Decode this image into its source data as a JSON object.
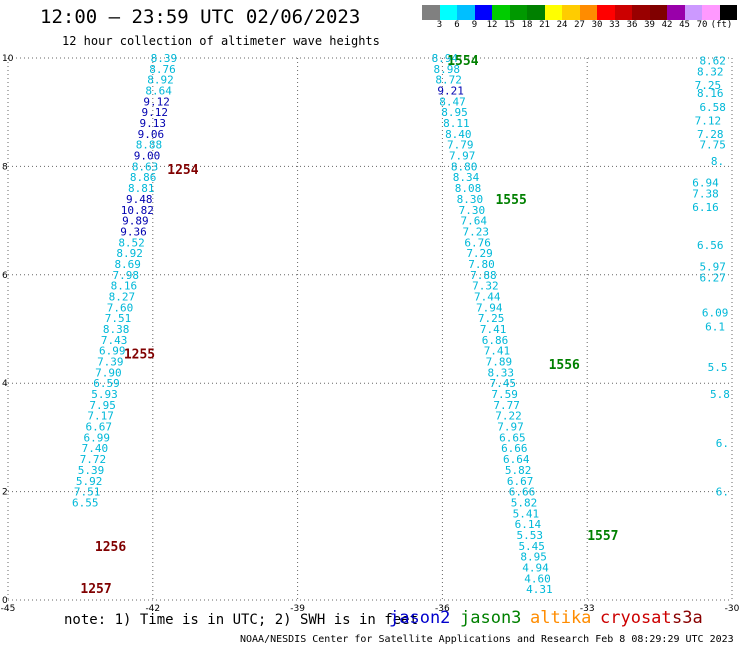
{
  "header": {
    "title": "12:00 — 23:59 UTC 02/06/2023",
    "subtitle": "12 hour collection of altimeter wave heights"
  },
  "colorbar": {
    "colors": [
      "#808080",
      "#00ffff",
      "#00bfff",
      "#0000ff",
      "#00cc00",
      "#009900",
      "#008000",
      "#ffff00",
      "#ffcc00",
      "#ff8c00",
      "#ff0000",
      "#cc0000",
      "#990000",
      "#800000",
      "#9900aa",
      "#cc99ff",
      "#ff99ff",
      "#000000"
    ],
    "labels": [
      "3",
      "6",
      "9",
      "12",
      "15",
      "18",
      "21",
      "24",
      "27",
      "30",
      "33",
      "36",
      "39",
      "42",
      "45",
      "70"
    ],
    "unit": "(ft)"
  },
  "note": "note: 1) Time is in UTC; 2) SWH is in feet",
  "satellites": [
    {
      "name": "jason2",
      "color": "#0000cc"
    },
    {
      "name": "jason3",
      "color": "#008000"
    },
    {
      "name": "altika",
      "color": "#ff8c00"
    },
    {
      "name": "cryosat",
      "color": "#cc0000"
    },
    {
      "name": "s3a",
      "color": "#880000"
    }
  ],
  "footer": "NOAA/NESDIS Center for Satellite Applications and Research   Feb  8 08:29:29 UTC 2023",
  "chart_data": {
    "type": "scatter",
    "title": "12:00 — 23:59 UTC 02/06/2023",
    "subtitle": "12 hour collection of altimeter wave heights",
    "xlim": [
      -45,
      -30
    ],
    "ylim": [
      0,
      10
    ],
    "x_ticks": [
      "-45",
      "-42",
      "-39",
      "-36",
      "-33",
      "-30"
    ],
    "y_ticks": [
      "0",
      "2",
      "4",
      "6",
      "8",
      "10"
    ],
    "grid": true,
    "series": [
      {
        "color_map": {
          "cyan": "#00b8d8",
          "blue": "#1040e0",
          "navy": "#0000b0"
        },
        "points": [
          {
            "x": -41.77,
            "y": 10.0,
            "v": "8.39",
            "c": "cyan"
          },
          {
            "x": -41.8,
            "y": 9.8,
            "v": "8.76",
            "c": "cyan"
          },
          {
            "x": -41.84,
            "y": 9.6,
            "v": "8.92",
            "c": "cyan"
          },
          {
            "x": -41.88,
            "y": 9.4,
            "v": "8.64",
            "c": "cyan"
          },
          {
            "x": -41.92,
            "y": 9.2,
            "v": "9.12",
            "c": "navy"
          },
          {
            "x": -41.96,
            "y": 9.0,
            "v": "9.12",
            "c": "navy"
          },
          {
            "x": -42.0,
            "y": 8.8,
            "v": "9.13",
            "c": "navy"
          },
          {
            "x": -42.04,
            "y": 8.6,
            "v": "9.06",
            "c": "navy"
          },
          {
            "x": -42.08,
            "y": 8.4,
            "v": "8.88",
            "c": "cyan"
          },
          {
            "x": -42.12,
            "y": 8.2,
            "v": "9.00",
            "c": "navy"
          },
          {
            "x": -42.16,
            "y": 8.0,
            "v": "8.63",
            "c": "cyan"
          },
          {
            "x": -42.2,
            "y": 7.8,
            "v": "8.86",
            "c": "cyan"
          },
          {
            "x": -42.24,
            "y": 7.6,
            "v": "8.81",
            "c": "cyan"
          },
          {
            "x": -42.28,
            "y": 7.4,
            "v": "9.48",
            "c": "navy"
          },
          {
            "x": -42.32,
            "y": 7.2,
            "v": "10.82",
            "c": "navy"
          },
          {
            "x": -42.36,
            "y": 7.0,
            "v": "9.89",
            "c": "navy"
          },
          {
            "x": -42.4,
            "y": 6.8,
            "v": "9.36",
            "c": "navy"
          },
          {
            "x": -42.44,
            "y": 6.6,
            "v": "8.52",
            "c": "cyan"
          },
          {
            "x": -42.48,
            "y": 6.4,
            "v": "8.92",
            "c": "cyan"
          },
          {
            "x": -42.52,
            "y": 6.2,
            "v": "8.69",
            "c": "cyan"
          },
          {
            "x": -42.56,
            "y": 6.0,
            "v": "7.98",
            "c": "cyan"
          },
          {
            "x": -42.6,
            "y": 5.8,
            "v": "8.16",
            "c": "cyan"
          },
          {
            "x": -42.64,
            "y": 5.6,
            "v": "8.27",
            "c": "cyan"
          },
          {
            "x": -42.68,
            "y": 5.4,
            "v": "7.60",
            "c": "cyan"
          },
          {
            "x": -42.72,
            "y": 5.2,
            "v": "7.51",
            "c": "cyan"
          },
          {
            "x": -42.76,
            "y": 5.0,
            "v": "8.38",
            "c": "cyan"
          },
          {
            "x": -42.8,
            "y": 4.8,
            "v": "7.43",
            "c": "cyan"
          },
          {
            "x": -42.84,
            "y": 4.6,
            "v": "6.99",
            "c": "cyan"
          },
          {
            "x": -42.88,
            "y": 4.4,
            "v": "7.39",
            "c": "cyan"
          },
          {
            "x": -42.92,
            "y": 4.2,
            "v": "7.90",
            "c": "cyan"
          },
          {
            "x": -42.96,
            "y": 4.0,
            "v": "6.59",
            "c": "cyan"
          },
          {
            "x": -43.0,
            "y": 3.8,
            "v": "5.93",
            "c": "cyan"
          },
          {
            "x": -43.04,
            "y": 3.6,
            "v": "7.95",
            "c": "cyan"
          },
          {
            "x": -43.08,
            "y": 3.4,
            "v": "7.17",
            "c": "cyan"
          },
          {
            "x": -43.12,
            "y": 3.2,
            "v": "6.67",
            "c": "cyan"
          },
          {
            "x": -43.16,
            "y": 3.0,
            "v": "6.99",
            "c": "cyan"
          },
          {
            "x": -43.2,
            "y": 2.8,
            "v": "7.40",
            "c": "cyan"
          },
          {
            "x": -43.24,
            "y": 2.6,
            "v": "7.72",
            "c": "cyan"
          },
          {
            "x": -43.28,
            "y": 2.4,
            "v": "5.39",
            "c": "cyan"
          },
          {
            "x": -43.32,
            "y": 2.2,
            "v": "5.92",
            "c": "cyan"
          },
          {
            "x": -43.36,
            "y": 2.0,
            "v": "7.51",
            "c": "cyan"
          },
          {
            "x": -43.4,
            "y": 1.8,
            "v": "6.55",
            "c": "cyan"
          },
          {
            "x": -35.95,
            "y": 10.0,
            "v": "8.94",
            "c": "cyan"
          },
          {
            "x": -35.91,
            "y": 9.8,
            "v": "8.98",
            "c": "cyan"
          },
          {
            "x": -35.87,
            "y": 9.6,
            "v": "8.72",
            "c": "cyan"
          },
          {
            "x": -35.83,
            "y": 9.4,
            "v": "9.21",
            "c": "navy"
          },
          {
            "x": -35.79,
            "y": 9.2,
            "v": "8.47",
            "c": "cyan"
          },
          {
            "x": -35.75,
            "y": 9.0,
            "v": "8.95",
            "c": "cyan"
          },
          {
            "x": -35.71,
            "y": 8.8,
            "v": "8.11",
            "c": "cyan"
          },
          {
            "x": -35.67,
            "y": 8.6,
            "v": "8.40",
            "c": "cyan"
          },
          {
            "x": -35.63,
            "y": 8.4,
            "v": "7.79",
            "c": "cyan"
          },
          {
            "x": -35.59,
            "y": 8.2,
            "v": "7.97",
            "c": "cyan"
          },
          {
            "x": -35.55,
            "y": 8.0,
            "v": "8.80",
            "c": "cyan"
          },
          {
            "x": -35.51,
            "y": 7.8,
            "v": "8.34",
            "c": "cyan"
          },
          {
            "x": -35.47,
            "y": 7.6,
            "v": "8.08",
            "c": "cyan"
          },
          {
            "x": -35.43,
            "y": 7.4,
            "v": "8.30",
            "c": "cyan"
          },
          {
            "x": -35.39,
            "y": 7.2,
            "v": "7.30",
            "c": "cyan"
          },
          {
            "x": -35.35,
            "y": 7.0,
            "v": "7.64",
            "c": "cyan"
          },
          {
            "x": -35.31,
            "y": 6.8,
            "v": "7.23",
            "c": "cyan"
          },
          {
            "x": -35.27,
            "y": 6.6,
            "v": "6.76",
            "c": "cyan"
          },
          {
            "x": -35.23,
            "y": 6.4,
            "v": "7.29",
            "c": "cyan"
          },
          {
            "x": -35.19,
            "y": 6.2,
            "v": "7.80",
            "c": "cyan"
          },
          {
            "x": -35.15,
            "y": 6.0,
            "v": "7.88",
            "c": "cyan"
          },
          {
            "x": -35.11,
            "y": 5.8,
            "v": "7.32",
            "c": "cyan"
          },
          {
            "x": -35.07,
            "y": 5.6,
            "v": "7.44",
            "c": "cyan"
          },
          {
            "x": -35.03,
            "y": 5.4,
            "v": "7.94",
            "c": "cyan"
          },
          {
            "x": -34.99,
            "y": 5.2,
            "v": "7.25",
            "c": "cyan"
          },
          {
            "x": -34.95,
            "y": 5.0,
            "v": "7.41",
            "c": "cyan"
          },
          {
            "x": -34.91,
            "y": 4.8,
            "v": "6.86",
            "c": "cyan"
          },
          {
            "x": -34.87,
            "y": 4.6,
            "v": "7.41",
            "c": "cyan"
          },
          {
            "x": -34.83,
            "y": 4.4,
            "v": "7.89",
            "c": "cyan"
          },
          {
            "x": -34.79,
            "y": 4.2,
            "v": "8.33",
            "c": "cyan"
          },
          {
            "x": -34.75,
            "y": 4.0,
            "v": "7.45",
            "c": "cyan"
          },
          {
            "x": -34.71,
            "y": 3.8,
            "v": "7.59",
            "c": "cyan"
          },
          {
            "x": -34.67,
            "y": 3.6,
            "v": "7.77",
            "c": "cyan"
          },
          {
            "x": -34.63,
            "y": 3.4,
            "v": "7.22",
            "c": "cyan"
          },
          {
            "x": -34.59,
            "y": 3.2,
            "v": "7.97",
            "c": "cyan"
          },
          {
            "x": -34.55,
            "y": 3.0,
            "v": "6.65",
            "c": "cyan"
          },
          {
            "x": -34.51,
            "y": 2.8,
            "v": "6.66",
            "c": "cyan"
          },
          {
            "x": -34.47,
            "y": 2.6,
            "v": "6.64",
            "c": "cyan"
          },
          {
            "x": -34.43,
            "y": 2.4,
            "v": "5.82",
            "c": "cyan"
          },
          {
            "x": -34.39,
            "y": 2.2,
            "v": "6.67",
            "c": "cyan"
          },
          {
            "x": -34.35,
            "y": 2.0,
            "v": "6.66",
            "c": "cyan"
          },
          {
            "x": -34.31,
            "y": 1.8,
            "v": "5.82",
            "c": "cyan"
          },
          {
            "x": -34.27,
            "y": 1.6,
            "v": "5.41",
            "c": "cyan"
          },
          {
            "x": -34.23,
            "y": 1.4,
            "v": "6.14",
            "c": "cyan"
          },
          {
            "x": -34.19,
            "y": 1.2,
            "v": "5.53",
            "c": "cyan"
          },
          {
            "x": -34.15,
            "y": 1.0,
            "v": "5.45",
            "c": "cyan"
          },
          {
            "x": -34.11,
            "y": 0.8,
            "v": "8.95",
            "c": "cyan"
          },
          {
            "x": -34.07,
            "y": 0.6,
            "v": "4.94",
            "c": "cyan"
          },
          {
            "x": -34.03,
            "y": 0.4,
            "v": "4.60",
            "c": "cyan"
          },
          {
            "x": -33.99,
            "y": 0.2,
            "v": "4.31",
            "c": "cyan"
          }
        ]
      },
      {
        "points": [
          {
            "x": -30.4,
            "y": 9.95,
            "v": "8.62",
            "c": "cyan"
          },
          {
            "x": -30.45,
            "y": 9.75,
            "v": "8.32",
            "c": "cyan"
          },
          {
            "x": -30.5,
            "y": 9.5,
            "v": "7.25",
            "c": "cyan"
          },
          {
            "x": -30.45,
            "y": 9.35,
            "v": "8.16",
            "c": "cyan"
          },
          {
            "x": -30.4,
            "y": 9.1,
            "v": "6.58",
            "c": "cyan"
          },
          {
            "x": -30.5,
            "y": 8.85,
            "v": "7.12",
            "c": "cyan"
          },
          {
            "x": -30.45,
            "y": 8.6,
            "v": "7.28",
            "c": "cyan"
          },
          {
            "x": -30.4,
            "y": 8.4,
            "v": "7.75",
            "c": "cyan"
          },
          {
            "x": -30.3,
            "y": 8.1,
            "v": "8.",
            "c": "cyan"
          },
          {
            "x": -30.55,
            "y": 7.7,
            "v": "6.94",
            "c": "cyan"
          },
          {
            "x": -30.55,
            "y": 7.5,
            "v": "7.38",
            "c": "cyan"
          },
          {
            "x": -30.55,
            "y": 7.25,
            "v": "6.16",
            "c": "cyan"
          },
          {
            "x": -30.45,
            "y": 6.55,
            "v": "6.56",
            "c": "cyan"
          },
          {
            "x": -30.4,
            "y": 6.15,
            "v": "5.97",
            "c": "cyan"
          },
          {
            "x": -30.4,
            "y": 5.95,
            "v": "6.27",
            "c": "cyan"
          },
          {
            "x": -30.35,
            "y": 5.3,
            "v": "6.09",
            "c": "cyan"
          },
          {
            "x": -30.35,
            "y": 5.05,
            "v": "6.1",
            "c": "cyan"
          },
          {
            "x": -30.3,
            "y": 4.3,
            "v": "5.5",
            "c": "cyan"
          },
          {
            "x": -30.25,
            "y": 3.8,
            "v": "5.8",
            "c": "cyan"
          },
          {
            "x": -30.2,
            "y": 2.9,
            "v": "6.",
            "c": "cyan"
          },
          {
            "x": -30.2,
            "y": 2.0,
            "v": "6.",
            "c": "cyan"
          }
        ]
      }
    ],
    "time_labels": [
      {
        "x": -41.7,
        "y": 7.95,
        "text": "1254",
        "color": "#800000"
      },
      {
        "x": -35.9,
        "y": 9.96,
        "text": "1554",
        "color": "#008000"
      },
      {
        "x": -34.9,
        "y": 7.4,
        "text": "1555",
        "color": "#008000"
      },
      {
        "x": -42.6,
        "y": 4.55,
        "text": "1255",
        "color": "#800000"
      },
      {
        "x": -33.8,
        "y": 4.35,
        "text": "1556",
        "color": "#008000"
      },
      {
        "x": -33.0,
        "y": 1.2,
        "text": "1557",
        "color": "#008000"
      },
      {
        "x": -43.2,
        "y": 1.0,
        "text": "1256",
        "color": "#800000"
      },
      {
        "x": -43.5,
        "y": 0.22,
        "text": "1257",
        "color": "#800000"
      }
    ]
  }
}
